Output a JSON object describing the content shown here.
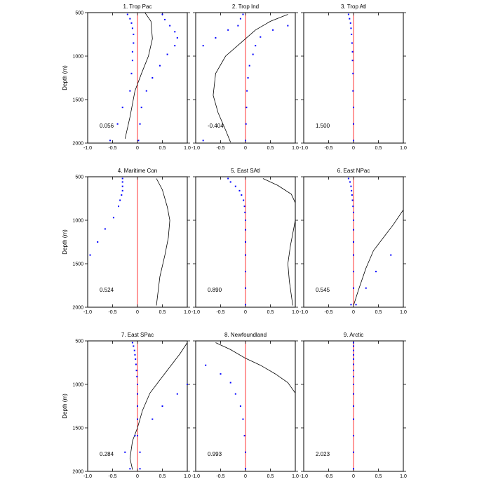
{
  "chart_data": {
    "type": "line",
    "grid": false,
    "ylabel": "Depth (m)",
    "xlim": [
      -1.0,
      1.0
    ],
    "ylim": [
      500,
      2000
    ],
    "y_inverted": true,
    "xticks": [
      -1.0,
      -0.5,
      0,
      0.5,
      1.0
    ],
    "xtick_labels": [
      "-1.0",
      "-0.5",
      "0",
      "0.5",
      "1.0"
    ],
    "yticks": [
      500,
      1000,
      1500,
      2000
    ],
    "ytick_labels": [
      "500",
      "1000",
      "1500",
      "2000"
    ],
    "colors": {
      "profile": "#000000",
      "points": "#0000ff",
      "zero_line": "#ff0000"
    },
    "panels": [
      {
        "title": "1. Trop Pac",
        "value_label": "0.056",
        "line": [
          [
            0.15,
            500
          ],
          [
            0.27,
            600
          ],
          [
            0.3,
            800
          ],
          [
            0.22,
            1000
          ],
          [
            0.08,
            1200
          ],
          [
            -0.05,
            1400
          ],
          [
            -0.15,
            1700
          ],
          [
            -0.25,
            1950
          ]
        ],
        "points": [
          [
            -0.2,
            520
          ],
          [
            -0.15,
            570
          ],
          [
            -0.12,
            620
          ],
          [
            -0.1,
            680
          ],
          [
            -0.08,
            750
          ],
          [
            -0.08,
            850
          ],
          [
            -0.1,
            950
          ],
          [
            -0.1,
            1050
          ],
          [
            -0.12,
            1200
          ],
          [
            -0.15,
            1400
          ],
          [
            -0.3,
            1590
          ],
          [
            -0.4,
            1780
          ],
          [
            -0.55,
            1970
          ],
          [
            0.5,
            520
          ],
          [
            0.55,
            580
          ],
          [
            0.65,
            650
          ],
          [
            0.75,
            720
          ],
          [
            0.8,
            790
          ],
          [
            0.75,
            880
          ],
          [
            0.6,
            980
          ],
          [
            0.45,
            1110
          ],
          [
            0.3,
            1250
          ],
          [
            0.18,
            1400
          ],
          [
            0.08,
            1590
          ],
          [
            0.05,
            1780
          ],
          [
            0.02,
            1970
          ]
        ]
      },
      {
        "title": "2. Trop Ind",
        "value_label": "-0.404",
        "line": [
          [
            0.85,
            520
          ],
          [
            0.5,
            600
          ],
          [
            0.2,
            700
          ],
          [
            -0.1,
            850
          ],
          [
            -0.4,
            1000
          ],
          [
            -0.6,
            1200
          ],
          [
            -0.65,
            1450
          ],
          [
            -0.55,
            1650
          ],
          [
            -0.4,
            1850
          ],
          [
            -0.3,
            1990
          ]
        ],
        "points": [
          [
            0.85,
            650
          ],
          [
            0.55,
            700
          ],
          [
            0.3,
            780
          ],
          [
            0.2,
            880
          ],
          [
            0.15,
            980
          ],
          [
            0.08,
            1110
          ],
          [
            0.05,
            1250
          ],
          [
            0.03,
            1400
          ],
          [
            0.02,
            1590
          ],
          [
            0.01,
            1780
          ],
          [
            0.0,
            1970
          ],
          [
            -0.05,
            520
          ],
          [
            -0.1,
            570
          ],
          [
            -0.15,
            650
          ],
          [
            -0.35,
            700
          ],
          [
            -0.6,
            790
          ],
          [
            -0.85,
            880
          ],
          [
            -0.85,
            1970
          ]
        ]
      },
      {
        "title": "3. Trop Atl",
        "value_label": "1.500",
        "line": [],
        "points": [
          [
            -0.1,
            520
          ],
          [
            -0.08,
            570
          ],
          [
            -0.06,
            620
          ],
          [
            -0.05,
            680
          ],
          [
            -0.04,
            750
          ],
          [
            -0.03,
            850
          ],
          [
            -0.02,
            950
          ],
          [
            -0.02,
            1050
          ],
          [
            -0.01,
            1200
          ],
          [
            -0.01,
            1400
          ],
          [
            0.0,
            1590
          ],
          [
            0.0,
            1780
          ],
          [
            0.0,
            1970
          ]
        ]
      },
      {
        "title": "4. Maritime Con",
        "value_label": "0.524",
        "line": [
          [
            0.38,
            520
          ],
          [
            0.5,
            650
          ],
          [
            0.6,
            850
          ],
          [
            0.65,
            1000
          ],
          [
            0.62,
            1200
          ],
          [
            0.55,
            1400
          ],
          [
            0.45,
            1650
          ],
          [
            0.38,
            1980
          ]
        ],
        "points": [
          [
            -0.3,
            520
          ],
          [
            -0.3,
            560
          ],
          [
            -0.3,
            610
          ],
          [
            -0.3,
            660
          ],
          [
            -0.32,
            710
          ],
          [
            -0.35,
            770
          ],
          [
            -0.38,
            840
          ],
          [
            -0.48,
            970
          ],
          [
            -0.65,
            1100
          ],
          [
            -0.8,
            1250
          ],
          [
            -0.95,
            1400
          ]
        ]
      },
      {
        "title": "5. East SAtl",
        "value_label": "0.890",
        "line": [
          [
            0.35,
            520
          ],
          [
            0.65,
            600
          ],
          [
            0.92,
            700
          ],
          [
            1.0,
            800
          ],
          [
            1.0,
            1000
          ],
          [
            0.9,
            1300
          ],
          [
            0.85,
            1500
          ],
          [
            0.88,
            1700
          ],
          [
            0.95,
            1980
          ]
        ],
        "points": [
          [
            -0.35,
            520
          ],
          [
            -0.3,
            560
          ],
          [
            -0.2,
            610
          ],
          [
            -0.12,
            660
          ],
          [
            -0.08,
            710
          ],
          [
            -0.04,
            770
          ],
          [
            -0.02,
            840
          ],
          [
            -0.01,
            910
          ],
          [
            0.0,
            1000
          ],
          [
            0.0,
            1110
          ],
          [
            0.0,
            1250
          ],
          [
            0.0,
            1400
          ],
          [
            0.0,
            1590
          ],
          [
            0.0,
            1780
          ],
          [
            0.0,
            1970
          ]
        ]
      },
      {
        "title": "6. East NPac",
        "value_label": "0.545",
        "line": [
          [
            1.0,
            880
          ],
          [
            0.8,
            1050
          ],
          [
            0.6,
            1200
          ],
          [
            0.4,
            1350
          ],
          [
            0.25,
            1550
          ],
          [
            0.1,
            1800
          ],
          [
            0.0,
            1980
          ]
        ],
        "points": [
          [
            -0.1,
            520
          ],
          [
            -0.07,
            560
          ],
          [
            -0.05,
            610
          ],
          [
            -0.04,
            660
          ],
          [
            -0.03,
            710
          ],
          [
            -0.02,
            770
          ],
          [
            -0.01,
            840
          ],
          [
            0.0,
            910
          ],
          [
            0.0,
            1000
          ],
          [
            0.0,
            1110
          ],
          [
            0.0,
            1250
          ],
          [
            0.0,
            1400
          ],
          [
            0.0,
            1590
          ],
          [
            0.0,
            1780
          ],
          [
            -0.05,
            1970
          ],
          [
            0.05,
            1970
          ],
          [
            0.75,
            1400
          ],
          [
            0.45,
            1590
          ],
          [
            0.25,
            1780
          ]
        ]
      },
      {
        "title": "7. East SPac",
        "value_label": "0.284",
        "line": [
          [
            1.0,
            520
          ],
          [
            0.85,
            650
          ],
          [
            0.65,
            800
          ],
          [
            0.45,
            950
          ],
          [
            0.25,
            1100
          ],
          [
            0.1,
            1300
          ],
          [
            0.0,
            1500
          ],
          [
            -0.1,
            1650
          ],
          [
            -0.15,
            1850
          ],
          [
            -0.1,
            1980
          ]
        ],
        "points": [
          [
            -0.1,
            520
          ],
          [
            -0.08,
            560
          ],
          [
            -0.06,
            610
          ],
          [
            -0.05,
            660
          ],
          [
            -0.04,
            710
          ],
          [
            -0.03,
            770
          ],
          [
            -0.02,
            840
          ],
          [
            -0.01,
            910
          ],
          [
            0.0,
            1000
          ],
          [
            0.0,
            1110
          ],
          [
            0.0,
            1250
          ],
          [
            0.0,
            1400
          ],
          [
            0.0,
            1590
          ],
          [
            0.05,
            1780
          ],
          [
            0.05,
            1970
          ],
          [
            -0.15,
            1970
          ],
          [
            -0.25,
            1780
          ],
          [
            -0.05,
            1590
          ],
          [
            0.3,
            1400
          ],
          [
            0.5,
            1250
          ],
          [
            0.8,
            1110
          ],
          [
            1.0,
            1000
          ]
        ]
      },
      {
        "title": "8. Newfoundland",
        "value_label": "0.993",
        "line": [
          [
            -0.6,
            520
          ],
          [
            -0.3,
            600
          ],
          [
            0.0,
            700
          ],
          [
            0.3,
            780
          ],
          [
            0.6,
            880
          ],
          [
            0.85,
            980
          ],
          [
            1.0,
            1100
          ]
        ],
        "points": [
          [
            -0.8,
            780
          ],
          [
            -0.5,
            880
          ],
          [
            -0.3,
            980
          ],
          [
            -0.2,
            1110
          ],
          [
            -0.1,
            1250
          ],
          [
            -0.05,
            1400
          ],
          [
            -0.02,
            1590
          ],
          [
            0.0,
            1780
          ],
          [
            0.0,
            1970
          ]
        ]
      },
      {
        "title": "9. Arctic",
        "value_label": "2.023",
        "line": [],
        "points": [
          [
            0.0,
            520
          ],
          [
            0.0,
            560
          ],
          [
            0.0,
            610
          ],
          [
            0.0,
            660
          ],
          [
            0.0,
            710
          ],
          [
            0.0,
            770
          ],
          [
            0.0,
            840
          ],
          [
            0.0,
            910
          ],
          [
            0.0,
            1000
          ],
          [
            0.0,
            1110
          ],
          [
            0.0,
            1250
          ],
          [
            0.0,
            1400
          ],
          [
            0.0,
            1590
          ],
          [
            0.0,
            1780
          ],
          [
            0.0,
            1970
          ]
        ]
      }
    ]
  }
}
